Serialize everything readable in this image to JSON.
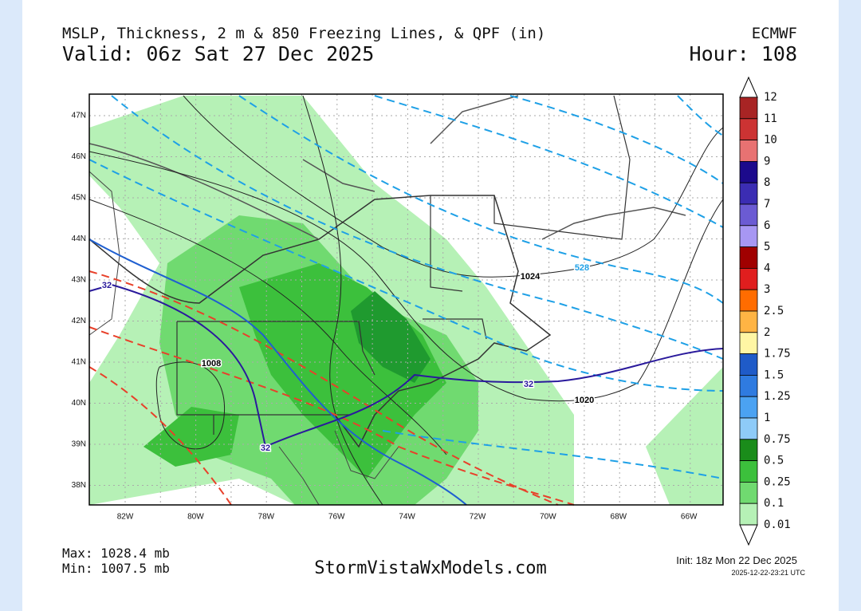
{
  "header": {
    "title": "MSLP, Thickness, 2 m & 850 Freezing Lines, & QPF (in)",
    "valid": "Valid: 06z Sat 27 Dec 2025",
    "model": "ECMWF",
    "hour": "Hour: 108"
  },
  "map": {
    "lat_labels": [
      "47N",
      "46N",
      "45N",
      "44N",
      "43N",
      "42N",
      "41N",
      "40N",
      "39N",
      "38N"
    ],
    "lon_labels": [
      "82W",
      "80W",
      "78W",
      "76W",
      "74W",
      "72W",
      "70W",
      "68W",
      "66W"
    ],
    "contour_labels": [
      "1008",
      "1024",
      "1020",
      "528",
      "32",
      "32",
      "32"
    ]
  },
  "colorbar": {
    "labels": [
      "12",
      "11",
      "10",
      "9",
      "8",
      "7",
      "6",
      "5",
      "4",
      "3",
      "2.5",
      "2",
      "1.75",
      "1.5",
      "1.25",
      "1",
      "0.75",
      "0.5",
      "0.25",
      "0.1",
      "0.01"
    ],
    "colors": [
      "#a82424",
      "#cc3333",
      "#e87272",
      "#1c0a8c",
      "#3b2db3",
      "#6b5bd3",
      "#a797f3",
      "#a00000",
      "#e01e1e",
      "#ff6c00",
      "#ffb444",
      "#fff6a4",
      "#1f5bc8",
      "#2f7be0",
      "#4ba2f2",
      "#8ecbf8",
      "#1a8c1a",
      "#3cc03c",
      "#70da70",
      "#b6f1b6"
    ]
  },
  "footer": {
    "max": "Max: 1028.4 mb",
    "min": "Min: 1007.5 mb",
    "site": "StormVistaWxModels.com",
    "init": "Init: 18z Mon 22 Dec 2025",
    "timestamp": "2025-12-22-23:21 UTC"
  }
}
